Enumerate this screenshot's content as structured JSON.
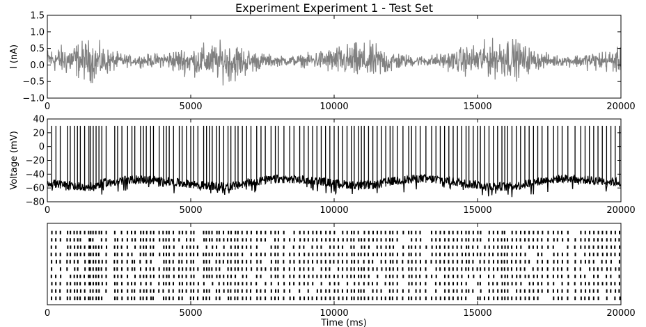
{
  "figure": {
    "title": "Experiment Experiment 1 - Test Set"
  },
  "chart_data": [
    {
      "type": "line",
      "title": "Experiment Experiment 1 - Test Set",
      "xlabel": "",
      "ylabel": "I (nA)",
      "xlim": [
        0,
        20000
      ],
      "ylim": [
        -1.0,
        1.5
      ],
      "x_ticks": [
        0,
        5000,
        10000,
        15000,
        20000
      ],
      "y_ticks": [
        -1.0,
        -0.5,
        0.0,
        0.5,
        1.0,
        1.5
      ],
      "x_tick_labels": [
        "0",
        "5000",
        "10000",
        "15000",
        "20000"
      ],
      "y_tick_labels": [
        "−1.0",
        "−0.5",
        "0.0",
        "0.5",
        "1.0",
        "1.5"
      ],
      "color": "#808080",
      "x": [
        0,
        500,
        1000,
        1500,
        2000,
        2500,
        3000,
        3500,
        4000,
        4500,
        5000,
        5500,
        6000,
        6500,
        7000,
        7500,
        8000,
        8500,
        9000,
        9500,
        10000,
        10500,
        11000,
        11500,
        12000,
        12500,
        13000,
        13500,
        14000,
        14500,
        15000,
        15500,
        16000,
        16500,
        17000,
        17500,
        18000,
        18500,
        19000,
        19500,
        20000
      ],
      "y_min": [
        -0.2,
        -0.35,
        -0.45,
        -0.6,
        -0.4,
        -0.15,
        -0.05,
        -0.1,
        -0.1,
        -0.3,
        -0.35,
        -0.45,
        -0.55,
        -0.6,
        -0.35,
        -0.15,
        -0.05,
        -0.05,
        -0.1,
        -0.2,
        -0.35,
        -0.45,
        -0.55,
        -0.5,
        -0.3,
        -0.1,
        -0.05,
        -0.1,
        -0.2,
        -0.35,
        -0.4,
        -0.45,
        -0.5,
        -0.45,
        -0.2,
        -0.1,
        -0.05,
        -0.1,
        -0.2,
        -0.25,
        -0.3
      ],
      "y_max": [
        0.55,
        0.65,
        0.75,
        0.85,
        0.6,
        0.4,
        0.3,
        0.35,
        0.4,
        0.55,
        0.6,
        0.7,
        0.75,
        0.8,
        0.55,
        0.4,
        0.3,
        0.3,
        0.35,
        0.5,
        0.6,
        0.7,
        0.75,
        0.7,
        0.5,
        0.35,
        0.3,
        0.35,
        0.45,
        0.6,
        0.7,
        0.8,
        1.0,
        0.75,
        0.5,
        0.35,
        0.3,
        0.35,
        0.45,
        0.5,
        0.55
      ]
    },
    {
      "type": "line",
      "title": "",
      "xlabel": "",
      "ylabel": "Voltage (mV)",
      "xlim": [
        0,
        20000
      ],
      "ylim": [
        -80,
        40
      ],
      "x_ticks": [
        0,
        5000,
        10000,
        15000,
        20000
      ],
      "y_ticks": [
        -80,
        -60,
        -40,
        -20,
        0,
        20,
        40
      ],
      "x_tick_labels": [
        "0",
        "5000",
        "10000",
        "15000",
        "20000"
      ],
      "y_tick_labels": [
        "−80",
        "−60",
        "−40",
        "−20",
        "0",
        "20",
        "40"
      ],
      "color": "#000000",
      "spike_peak_mV": 30,
      "baseline_mV": [
        -52,
        -55,
        -57,
        -58,
        -52,
        -50,
        -47,
        -48,
        -49,
        -52,
        -54,
        -56,
        -58,
        -57,
        -52,
        -49,
        -47,
        -47,
        -48,
        -50,
        -53,
        -55,
        -56,
        -55,
        -50,
        -48,
        -46,
        -47,
        -49,
        -53,
        -55,
        -57,
        -58,
        -56,
        -51,
        -48,
        -46,
        -47,
        -49,
        -50,
        -52
      ],
      "baseline_x": [
        0,
        500,
        1000,
        1500,
        2000,
        2500,
        3000,
        3500,
        4000,
        4500,
        5000,
        5500,
        6000,
        6500,
        7000,
        7500,
        8000,
        8500,
        9000,
        9500,
        10000,
        10500,
        11000,
        11500,
        12000,
        12500,
        13000,
        13500,
        14000,
        14500,
        15000,
        15500,
        16000,
        16500,
        17000,
        17500,
        18000,
        18500,
        19000,
        19500,
        20000
      ]
    },
    {
      "type": "raster",
      "title": "",
      "xlabel": "Time (ms)",
      "ylabel": "",
      "xlim": [
        0,
        20000
      ],
      "x_ticks": [
        0,
        5000,
        10000,
        15000,
        20000
      ],
      "x_tick_labels": [
        "0",
        "5000",
        "10000",
        "15000",
        "20000"
      ],
      "trials": 10,
      "color": "#000000",
      "spike_times_ms": [
        150,
        300,
        450,
        700,
        800,
        950,
        1050,
        1150,
        1300,
        1450,
        1500,
        1600,
        1700,
        1800,
        1900,
        2050,
        2350,
        2450,
        2600,
        2800,
        2950,
        3050,
        3250,
        3350,
        3450,
        3600,
        3700,
        3900,
        4050,
        4150,
        4250,
        4400,
        4600,
        4700,
        4850,
        5000,
        5100,
        5250,
        5450,
        5550,
        5650,
        5750,
        5900,
        6000,
        6150,
        6300,
        6400,
        6550,
        6650,
        6800,
        6950,
        7100,
        7300,
        7450,
        7600,
        7800,
        7950,
        8050,
        8250,
        8450,
        8600,
        8800,
        8950,
        9100,
        9250,
        9400,
        9550,
        9700,
        9850,
        10000,
        10150,
        10300,
        10450,
        10600,
        10700,
        10850,
        10950,
        11050,
        11200,
        11350,
        11500,
        11650,
        11800,
        11950,
        12050,
        12200,
        12400,
        12600,
        12700,
        12850,
        13000,
        13200,
        13400,
        13550,
        13700,
        13850,
        14000,
        14150,
        14300,
        14450,
        14600,
        14700,
        14850,
        15000,
        15100,
        15250,
        15400,
        15550,
        15700,
        15850,
        15950,
        16050,
        16200,
        16350,
        16500,
        16650,
        16800,
        16950,
        17100,
        17250,
        17450,
        17650,
        17800,
        17950,
        18150,
        18400,
        18600,
        18750,
        18900,
        19050,
        19200,
        19350,
        19500,
        19650,
        19800,
        19950
      ]
    }
  ]
}
